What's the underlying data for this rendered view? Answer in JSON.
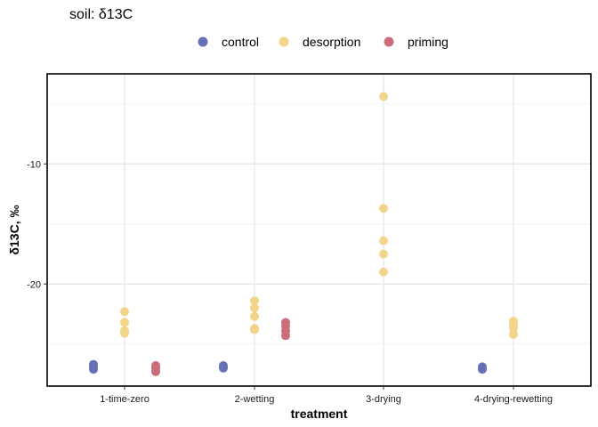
{
  "chart_data": {
    "type": "scatter",
    "title": "soil: δ13C",
    "xlabel": "treatment",
    "ylabel": "δ13C, ‰",
    "categories": [
      "1-time-zero",
      "2-wetting",
      "3-drying",
      "4-drying-rewetting"
    ],
    "ylim": [
      -28.5,
      -2.5
    ],
    "yticks": [
      -10,
      -20
    ],
    "ytick_labels": [
      "-10",
      "-20"
    ],
    "grid": true,
    "legend_position": "top",
    "colors": {
      "control": "#6670b5",
      "desorption": "#f2d48a",
      "priming": "#cc6e7a"
    },
    "series": [
      {
        "name": "control",
        "points": [
          {
            "x": "1-time-zero",
            "y": -26.7
          },
          {
            "x": "1-time-zero",
            "y": -26.9
          },
          {
            "x": "1-time-zero",
            "y": -27.1
          },
          {
            "x": "2-wetting",
            "y": -26.8
          },
          {
            "x": "2-wetting",
            "y": -27.0
          },
          {
            "x": "4-drying-rewetting",
            "y": -26.9
          },
          {
            "x": "4-drying-rewetting",
            "y": -27.1
          }
        ]
      },
      {
        "name": "desorption",
        "points": [
          {
            "x": "1-time-zero",
            "y": -22.3
          },
          {
            "x": "1-time-zero",
            "y": -23.2
          },
          {
            "x": "1-time-zero",
            "y": -23.9
          },
          {
            "x": "1-time-zero",
            "y": -24.1
          },
          {
            "x": "2-wetting",
            "y": -21.4
          },
          {
            "x": "2-wetting",
            "y": -22.0
          },
          {
            "x": "2-wetting",
            "y": -22.7
          },
          {
            "x": "2-wetting",
            "y": -23.7
          },
          {
            "x": "2-wetting",
            "y": -23.8
          },
          {
            "x": "3-drying",
            "y": -4.4
          },
          {
            "x": "3-drying",
            "y": -13.7
          },
          {
            "x": "3-drying",
            "y": -16.4
          },
          {
            "x": "3-drying",
            "y": -17.5
          },
          {
            "x": "3-drying",
            "y": -19.0
          },
          {
            "x": "4-drying-rewetting",
            "y": -23.1
          },
          {
            "x": "4-drying-rewetting",
            "y": -23.4
          },
          {
            "x": "4-drying-rewetting",
            "y": -23.7
          },
          {
            "x": "4-drying-rewetting",
            "y": -24.2
          }
        ]
      },
      {
        "name": "priming",
        "points": [
          {
            "x": "1-time-zero",
            "y": -26.8
          },
          {
            "x": "1-time-zero",
            "y": -27.0
          },
          {
            "x": "1-time-zero",
            "y": -27.3
          },
          {
            "x": "2-wetting",
            "y": -23.2
          },
          {
            "x": "2-wetting",
            "y": -23.5
          },
          {
            "x": "2-wetting",
            "y": -23.9
          },
          {
            "x": "2-wetting",
            "y": -24.3
          }
        ]
      }
    ]
  }
}
